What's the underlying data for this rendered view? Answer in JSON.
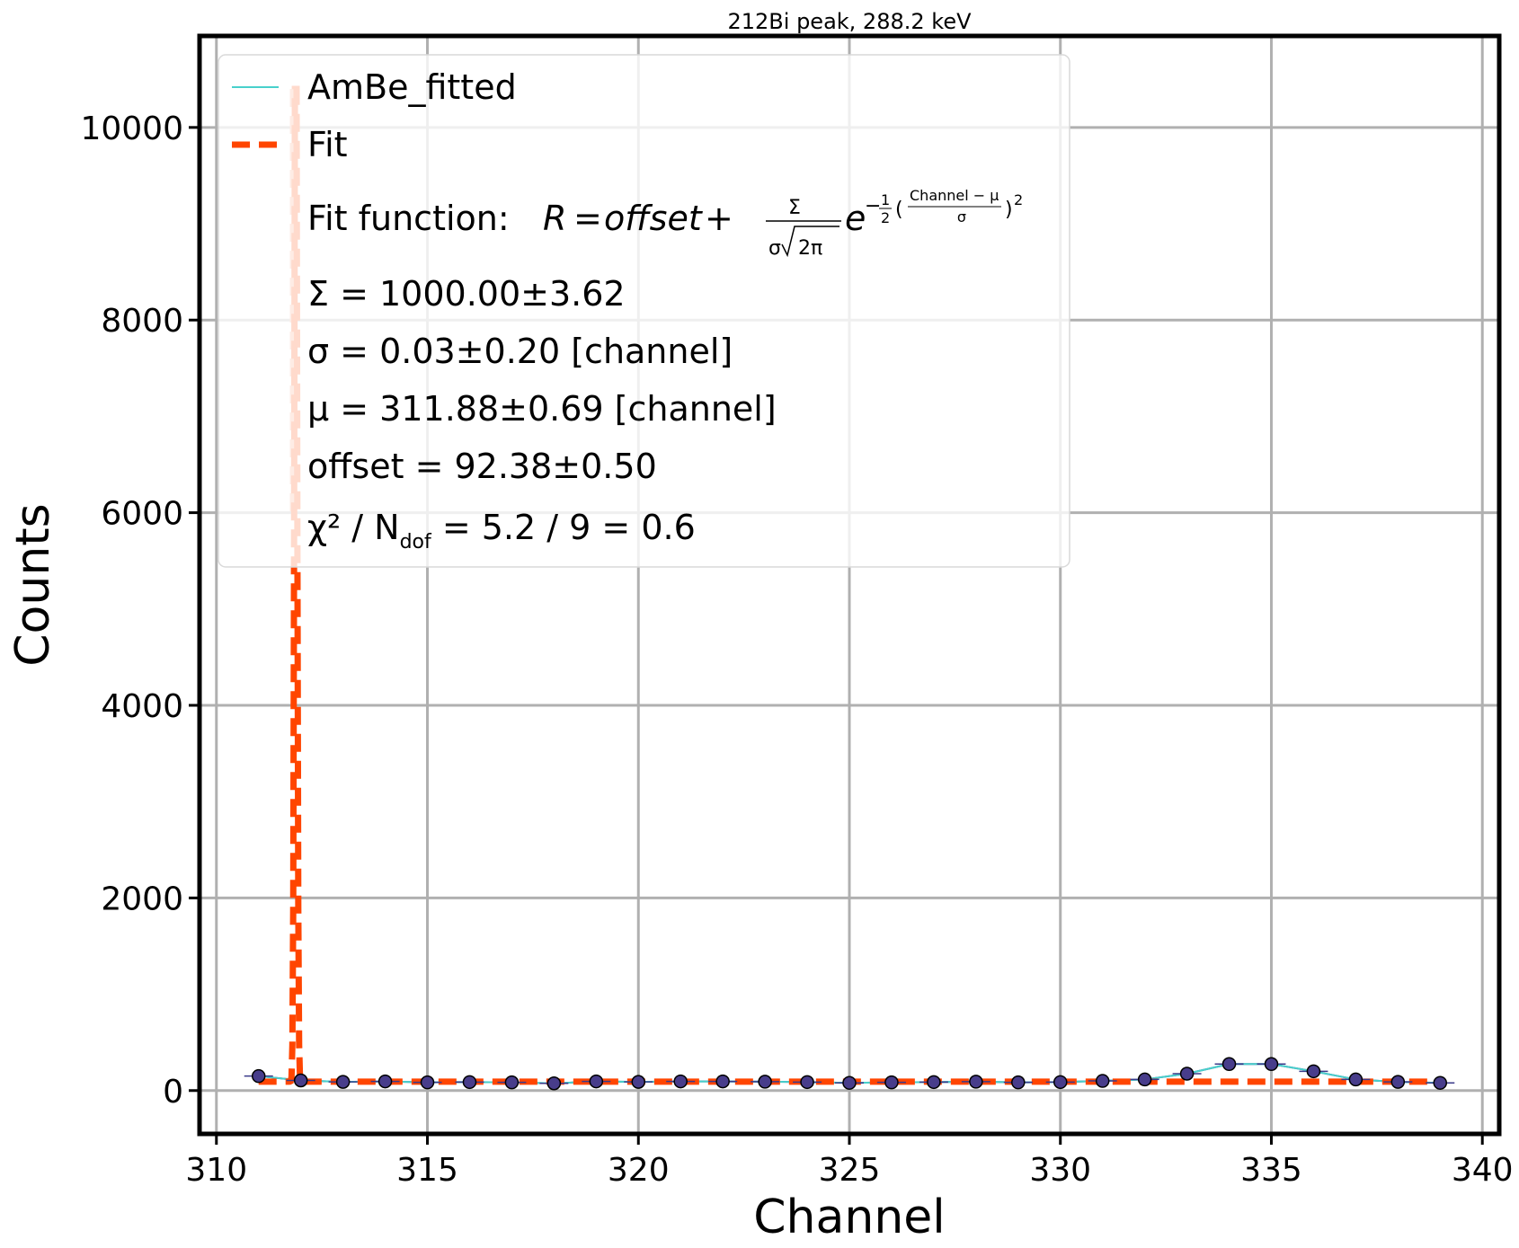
{
  "chart_data": {
    "type": "line",
    "title": "212Bi peak, 288.2 keV",
    "xlabel": "Channel",
    "ylabel": "Counts",
    "xlim": [
      309.6,
      340.4
    ],
    "ylim": [
      -450,
      10950
    ],
    "xticks": [
      310,
      315,
      320,
      325,
      330,
      335,
      340
    ],
    "yticks": [
      0,
      2000,
      4000,
      6000,
      8000,
      10000
    ],
    "grid": true,
    "legend_position": "top-left",
    "series": [
      {
        "name": "AmBe_fitted",
        "color": "#48d1cc",
        "x": [
          311,
          312,
          313,
          314,
          315,
          316,
          317,
          318,
          319,
          320,
          321,
          322,
          323,
          324,
          325,
          326,
          327,
          328,
          329,
          330,
          331,
          332,
          333,
          334,
          335,
          336,
          337,
          338,
          339
        ],
        "y": [
          150,
          105,
          90,
          95,
          85,
          88,
          85,
          75,
          95,
          90,
          95,
          95,
          92,
          88,
          80,
          85,
          88,
          92,
          85,
          88,
          100,
          115,
          175,
          275,
          275,
          200,
          115,
          90,
          80
        ]
      },
      {
        "name": "Fit",
        "color": "#ff4500",
        "dashed": true,
        "note_peak": 10400
      }
    ],
    "legend_entries": {
      "data": "AmBe_fitted",
      "fit": "Fit",
      "fit_function_prefix": "Fit function: ",
      "sigma_sum": "Σ = 1000.00±3.62",
      "sigma": "σ = 0.03±0.20 [channel]",
      "mu": "μ = 311.88±0.69 [channel]",
      "offset": "offset = 92.38±0.50",
      "chi2": "χ² / N",
      "chi2_sub": "dof",
      "chi2_rest": " = 5.2 / 9 = 0.6"
    },
    "fit_params": {
      "Sigma": 1000.0,
      "sigma": 0.03,
      "mu": 311.88,
      "offset": 92.38
    }
  }
}
